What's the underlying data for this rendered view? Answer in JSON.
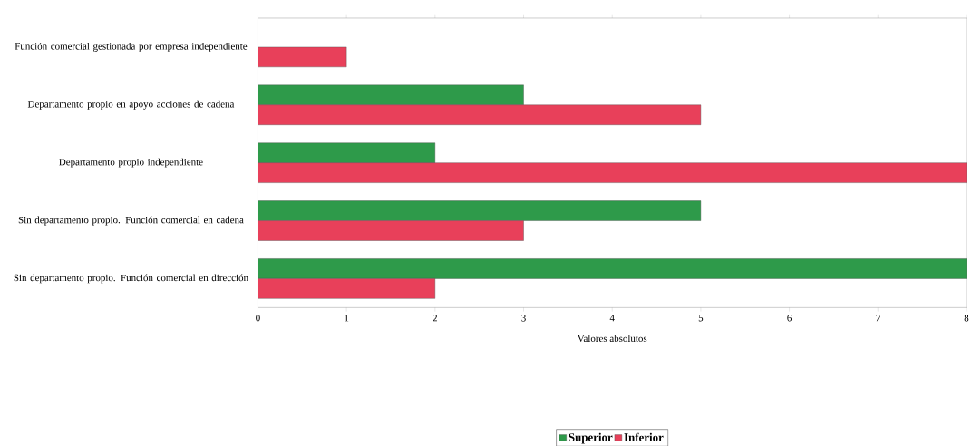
{
  "chart_data": {
    "type": "bar",
    "orientation": "horizontal",
    "xlabel": "Valores absolutos",
    "categories": [
      "Función comercial gestionada por empresa independiente",
      "Departamento propio en apoyo acciones de cadena",
      "Departamento propio independiente",
      "Sin departamento propio. Función comercial en cadena",
      "Sin departamento propio. Función comercial en dirección"
    ],
    "series": [
      {
        "name": "Superior",
        "color": "#2e9a4a",
        "values": [
          0,
          3,
          2,
          5,
          8
        ]
      },
      {
        "name": "Inferior",
        "color": "#e8405a",
        "values": [
          1,
          5,
          8,
          3,
          2
        ]
      }
    ],
    "xlim": [
      0,
      8
    ],
    "xticks": [
      0,
      1,
      2,
      3,
      4,
      5,
      6,
      7,
      8
    ],
    "legend": "bottom"
  }
}
